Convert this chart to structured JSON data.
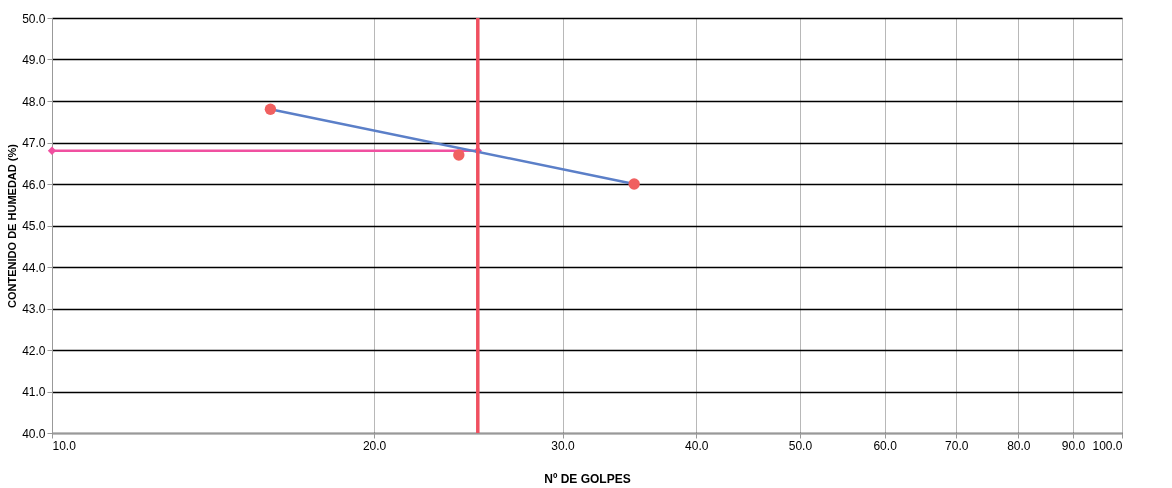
{
  "chart_data": {
    "type": "scatter",
    "xlabel": "Nº DE GOLPES",
    "ylabel": "CONTENIDO DE HUMEDAD (%)",
    "log": "x",
    "grid": true,
    "xlim": [
      10,
      100
    ],
    "xticks": [
      {
        "value": 10,
        "label": "10.0"
      },
      {
        "value": 20,
        "label": "20.0"
      },
      {
        "value": 30,
        "label": "30.0"
      },
      {
        "value": 40,
        "label": "40.0"
      },
      {
        "value": 50,
        "label": "50.0"
      },
      {
        "value": 60,
        "label": "60.0"
      },
      {
        "value": 70,
        "label": "70.0"
      },
      {
        "value": 80,
        "label": "80.0"
      },
      {
        "value": 90,
        "label": "90.0"
      },
      {
        "value": 100,
        "label": "100.0"
      }
    ],
    "ylim": [
      40,
      50
    ],
    "yticks": [
      {
        "value": 40,
        "label": "40.0"
      },
      {
        "value": 41,
        "label": "41.0"
      },
      {
        "value": 42,
        "label": "42.0"
      },
      {
        "value": 43,
        "label": "43.0"
      },
      {
        "value": 44,
        "label": "44.0"
      },
      {
        "value": 45,
        "label": "45.0"
      },
      {
        "value": 46,
        "label": "46.0"
      },
      {
        "value": 47,
        "label": "47.0"
      },
      {
        "value": 48,
        "label": "48.0"
      },
      {
        "value": 49,
        "label": "49.0"
      },
      {
        "value": 50,
        "label": "50.0"
      }
    ],
    "series": [
      {
        "type": "line",
        "color": "#f050a0",
        "marker": "diamond",
        "x": [
          10,
          25
        ],
        "values": [
          46.8,
          46.8
        ]
      },
      {
        "type": "line",
        "color": "#5b7fc8",
        "marker": "none",
        "x": [
          16,
          35
        ],
        "values": [
          47.8,
          46.0
        ]
      },
      {
        "color": "#f06060",
        "marker": "circle",
        "x": [
          16,
          24,
          35
        ],
        "values": [
          47.8,
          46.7,
          46.0
        ]
      }
    ],
    "ref_lines": [
      {
        "axis": "x",
        "value": 25,
        "color": "#f05060"
      }
    ]
  }
}
